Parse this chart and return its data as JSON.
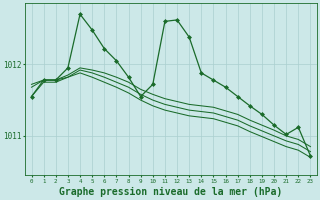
{
  "background_color": "#cce8e8",
  "grid_color": "#aacfcf",
  "line_color": "#1a6b2a",
  "marker_style": "D",
  "marker_size": 2.0,
  "title": "Graphe pression niveau de la mer (hPa)",
  "title_fontsize": 7.0,
  "xlim": [
    -0.5,
    23.5
  ],
  "ylim": [
    1010.45,
    1012.85
  ],
  "yticks": [
    1011,
    1012
  ],
  "xticks": [
    0,
    1,
    2,
    3,
    4,
    5,
    6,
    7,
    8,
    9,
    10,
    11,
    12,
    13,
    14,
    15,
    16,
    17,
    18,
    19,
    20,
    21,
    22,
    23
  ],
  "series": [
    {
      "x": [
        0,
        1,
        2,
        3,
        4,
        5,
        6,
        7,
        8,
        9,
        10,
        11,
        12,
        13,
        14,
        15,
        16,
        17,
        18,
        19,
        20,
        21,
        22,
        23
      ],
      "y": [
        1011.55,
        1011.78,
        1011.78,
        1011.95,
        1012.7,
        1012.48,
        1012.22,
        1012.05,
        1011.82,
        1011.55,
        1011.72,
        1012.6,
        1012.62,
        1012.38,
        1011.88,
        1011.78,
        1011.68,
        1011.55,
        1011.42,
        1011.3,
        1011.15,
        1011.02,
        1011.12,
        1010.72
      ],
      "with_markers": true
    },
    {
      "x": [
        0,
        1,
        2,
        3,
        4,
        5,
        6,
        7,
        8,
        9,
        10,
        11,
        12,
        13,
        14,
        15,
        16,
        17,
        18,
        19,
        20,
        21,
        22,
        23
      ],
      "y": [
        1011.72,
        1011.78,
        1011.78,
        1011.85,
        1011.95,
        1011.92,
        1011.88,
        1011.82,
        1011.75,
        1011.65,
        1011.58,
        1011.52,
        1011.48,
        1011.44,
        1011.42,
        1011.4,
        1011.35,
        1011.3,
        1011.22,
        1011.15,
        1011.08,
        1011.0,
        1010.95,
        1010.85
      ],
      "with_markers": false
    },
    {
      "x": [
        0,
        1,
        2,
        3,
        4,
        5,
        6,
        7,
        8,
        9,
        10,
        11,
        12,
        13,
        14,
        15,
        16,
        17,
        18,
        19,
        20,
        21,
        22,
        23
      ],
      "y": [
        1011.68,
        1011.78,
        1011.78,
        1011.82,
        1011.92,
        1011.88,
        1011.82,
        1011.75,
        1011.68,
        1011.58,
        1011.5,
        1011.44,
        1011.4,
        1011.36,
        1011.34,
        1011.32,
        1011.27,
        1011.22,
        1011.14,
        1011.07,
        1011.0,
        1010.93,
        1010.88,
        1010.78
      ],
      "with_markers": false
    },
    {
      "x": [
        0,
        1,
        2,
        3,
        4,
        5,
        6,
        7,
        8,
        9,
        10,
        11,
        12,
        13,
        14,
        15,
        16,
        17,
        18,
        19,
        20,
        21,
        22,
        23
      ],
      "y": [
        1011.55,
        1011.75,
        1011.75,
        1011.82,
        1011.88,
        1011.82,
        1011.75,
        1011.68,
        1011.6,
        1011.5,
        1011.42,
        1011.36,
        1011.32,
        1011.28,
        1011.26,
        1011.24,
        1011.19,
        1011.14,
        1011.06,
        1010.99,
        1010.92,
        1010.85,
        1010.8,
        1010.7
      ],
      "with_markers": false
    }
  ]
}
